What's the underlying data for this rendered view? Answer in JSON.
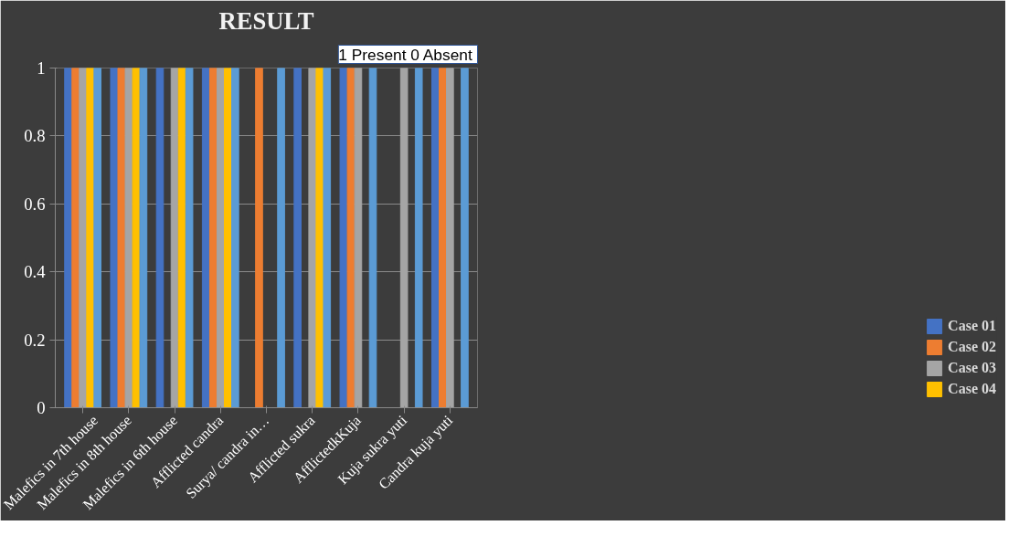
{
  "chart_data": {
    "type": "bar",
    "title": "RESULT",
    "annotations": [
      "1 Present  0 Absent"
    ],
    "categories": [
      "Malefics in 7th house",
      "Malefics in 8th house",
      "Malefics in 6th house",
      "Afflicted candra",
      "Surya/ candra in…",
      "Afflicted sukra",
      "AfflictedkKuja",
      "Kuja sukra yuti",
      "Candra kuja yuti"
    ],
    "series": [
      {
        "name": "Case 01",
        "color": "#4472c4",
        "values": [
          1,
          1,
          1,
          1,
          0,
          1,
          1,
          0,
          1
        ]
      },
      {
        "name": "Case 02",
        "color": "#ed7d31",
        "values": [
          1,
          1,
          0,
          1,
          1,
          0,
          1,
          0,
          1
        ]
      },
      {
        "name": "Case 03",
        "color": "#a5a5a5",
        "values": [
          1,
          1,
          1,
          1,
          0,
          1,
          1,
          1,
          1
        ]
      },
      {
        "name": "Case 04",
        "color": "#ffc000",
        "values": [
          1,
          1,
          1,
          1,
          0,
          1,
          0,
          0,
          0
        ]
      },
      {
        "color": "#5b9bd5",
        "values": [
          1,
          1,
          1,
          1,
          1,
          1,
          1,
          1,
          1
        ]
      }
    ],
    "ylim": [
      0,
      1
    ],
    "yticks": [
      0,
      0.2,
      0.4,
      0.6,
      0.8,
      1
    ],
    "grid": "y",
    "legend": "bottom right"
  }
}
